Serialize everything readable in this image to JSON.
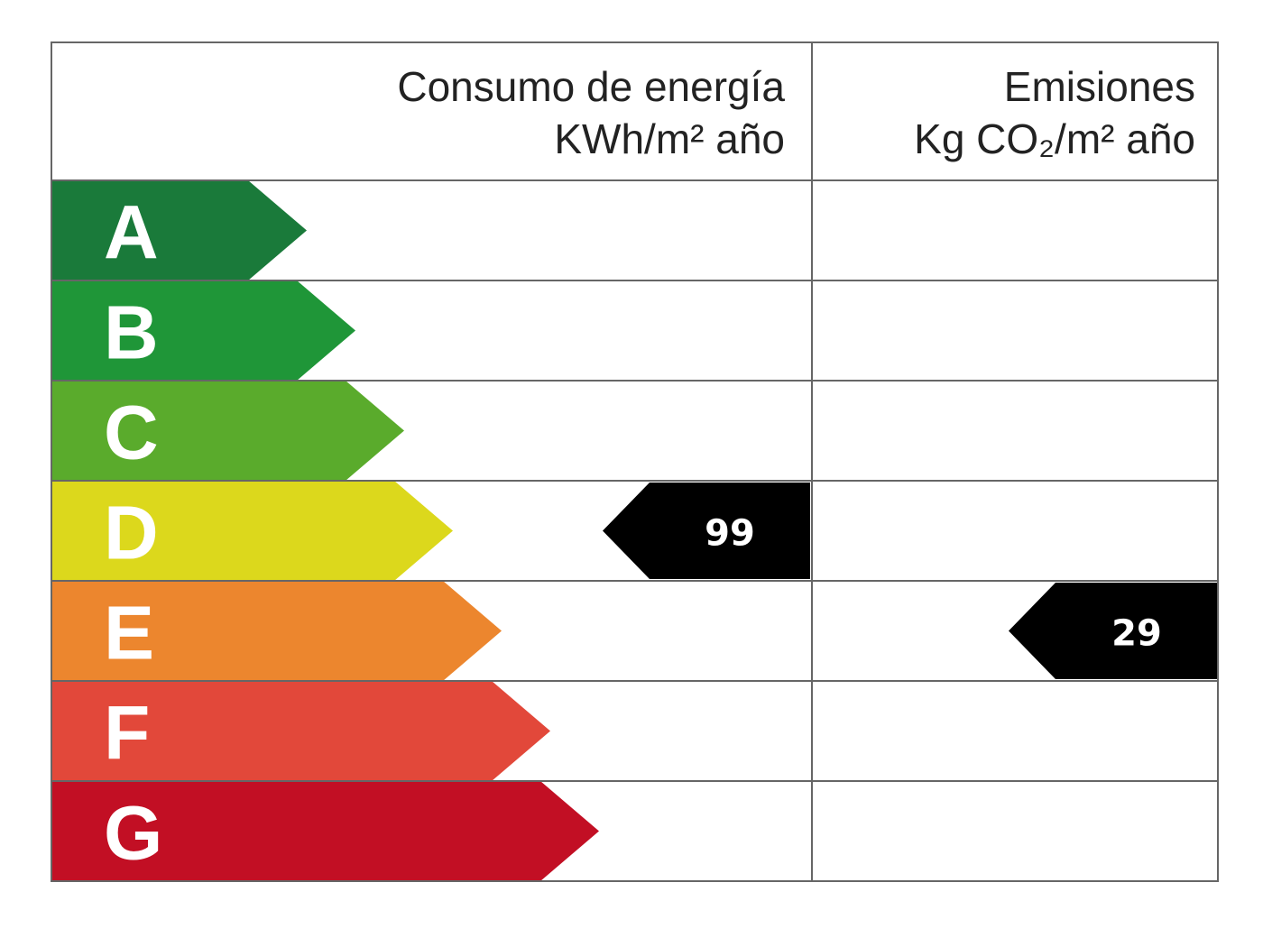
{
  "header": {
    "consumption_title": "Consumo de energía",
    "consumption_units": "KWh/m² año",
    "emissions_title": "Emisiones",
    "emissions_units": "Kg CO₂/m² año"
  },
  "classes": [
    {
      "letter": "A",
      "color": "#1a7a3a"
    },
    {
      "letter": "B",
      "color": "#1f9638"
    },
    {
      "letter": "C",
      "color": "#5aab2c"
    },
    {
      "letter": "D",
      "color": "#dcd81c"
    },
    {
      "letter": "E",
      "color": "#ec862e"
    },
    {
      "letter": "F",
      "color": "#e2483a"
    },
    {
      "letter": "G",
      "color": "#c20f24"
    }
  ],
  "consumption": {
    "value": 99,
    "class": "D"
  },
  "emissions": {
    "value": 29,
    "class": "E"
  }
}
